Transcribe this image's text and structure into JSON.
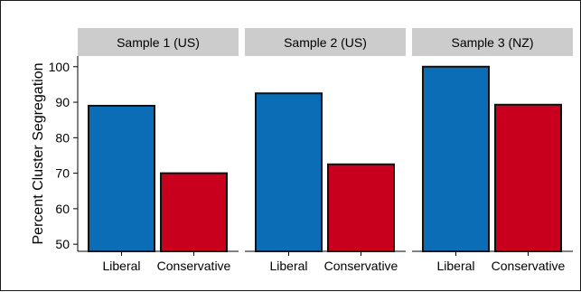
{
  "chart_data": {
    "type": "bar",
    "ylabel": "Percent Cluster Segregation",
    "ylim": [
      48,
      103
    ],
    "yticks": [
      50,
      60,
      70,
      80,
      90,
      100
    ],
    "categories": [
      "Liberal",
      "Conservative"
    ],
    "colors": {
      "Liberal": "#0a6db5",
      "Conservative": "#c8001e"
    },
    "strip_color": "#cccccc",
    "panels": [
      {
        "title": "Sample 1 (US)",
        "values": [
          89,
          70
        ]
      },
      {
        "title": "Sample 2 (US)",
        "values": [
          92.5,
          72.5
        ]
      },
      {
        "title": "Sample 3 (NZ)",
        "values": [
          100,
          89.3
        ]
      }
    ]
  }
}
